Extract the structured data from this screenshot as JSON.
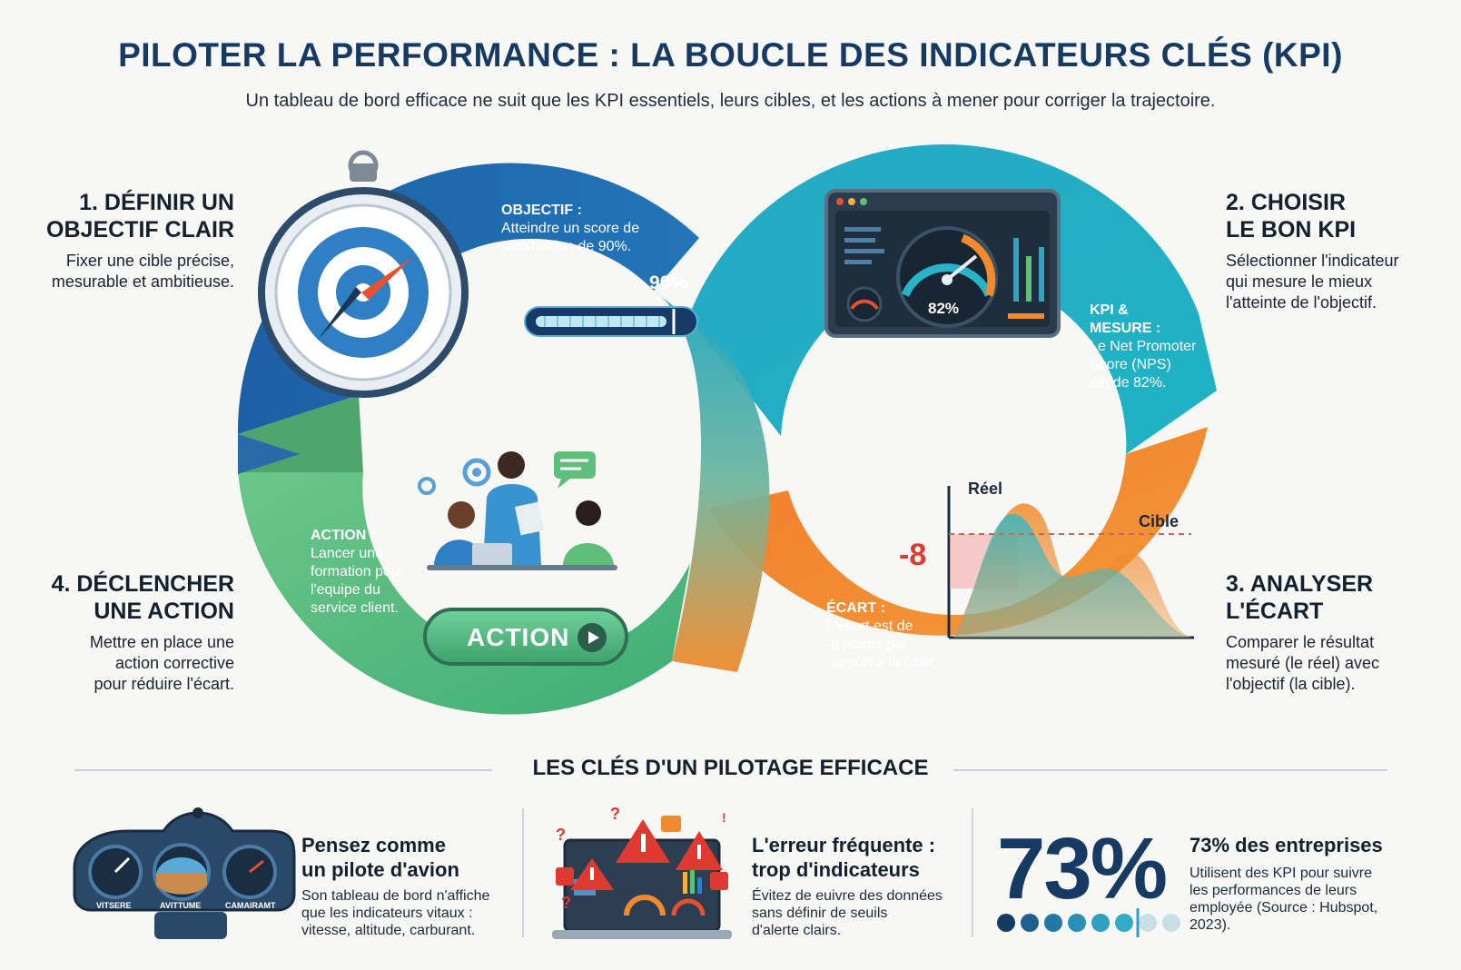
{
  "header": {
    "title": "PILOTER LA PERFORMANCE : LA BOUCLE DES INDICATEURS CLÉS (KPI)",
    "subtitle": "Un tableau de bord efficace ne suit que les KPI essentiels, leurs cibles, et les actions à mener pour corriger la trajectoire."
  },
  "steps": [
    {
      "title_l1": "1. DÉFINIR UN",
      "title_l2": "OBJECTIF CLAIR",
      "text_l1": "Fixer une cible précise,",
      "text_l2": "mesurable et ambitieuse.",
      "text_l3": ""
    },
    {
      "title_l1": "2. CHOISIR",
      "title_l2": "LE BON KPI",
      "text_l1": "Sélectionner l'indicateur",
      "text_l2": "qui mesure le mieux",
      "text_l3": "l'atteinte de l'objectif."
    },
    {
      "title_l1": "3. ANALYSER",
      "title_l2": "L'ÉCART",
      "text_l1": "Comparer le résultat",
      "text_l2": "mesuré (le réel) avec",
      "text_l3": "l'objectif (la cible)."
    },
    {
      "title_l1": "4. DÉCLENCHER",
      "title_l2": "UNE ACTION",
      "text_l1": "Mettre en place une",
      "text_l2": "action corrective",
      "text_l3": "pour réduire l'écart."
    }
  ],
  "callouts": {
    "objectif": {
      "title": "OBJECTIF :",
      "l1": "Atteindre un score de",
      "l2": "satisfaction de 90%."
    },
    "kpi": {
      "title_l1": "KPI &",
      "title_l2": "MESURE :",
      "l1": "Le Net Promoter",
      "l2": "Score (NPS)",
      "l3": "est de 82%."
    },
    "ecart": {
      "title": "ÉCART :",
      "l1": "L'écart est de",
      "l2": "-8 points par",
      "l3": "rapport à la cible."
    },
    "action": {
      "title": "ACTION :",
      "l1": "Lancer une",
      "l2": "formation pour",
      "l3": "l'equipe du",
      "l4": "service client."
    }
  },
  "objective_bar": {
    "label": "90%",
    "value": 90
  },
  "gauge": {
    "label": "82%",
    "value": 82
  },
  "ecart_chart": {
    "real_label": "Réel",
    "target_label": "Cible",
    "gap_label": "-8"
  },
  "action_button": {
    "label": "ACTION"
  },
  "keys": {
    "title": "LES CLÉS D'UN PILOTAGE EFFICACE",
    "card1": {
      "title_l1": "Pensez comme",
      "title_l2": "un pilote d'avion",
      "text_l1": "Son tableau de bord n'affiche",
      "text_l2": "que les indicateurs vitaux :",
      "text_l3": "vitesse, altitude, carburant.",
      "gauge_labels": [
        "VITSERE",
        "AVITTUME",
        "CAMAIRAMT"
      ]
    },
    "card2": {
      "title_l1": "L'erreur fréquente :",
      "title_l2": "trop d'indicateurs",
      "text_l1": "Évitez de euivre des données",
      "text_l2": "sans définir de seuils",
      "text_l3": "d'alerte clairs."
    },
    "card3": {
      "big_value": "73%",
      "title": "73% des entreprises",
      "text_l1": "Utilisent des KPI pour suivre",
      "text_l2": "les performances de leurs",
      "text_l3": "employée (Source : Hubspot,",
      "text_l4": "2023).",
      "dots_filled": 6,
      "dots_total": 8
    }
  },
  "colors": {
    "blue": "#1f5fa6",
    "teal": "#1fb3c4",
    "orange": "#f08a2c",
    "green": "#5fbf7a",
    "navy": "#173a63",
    "red": "#e0392f"
  }
}
